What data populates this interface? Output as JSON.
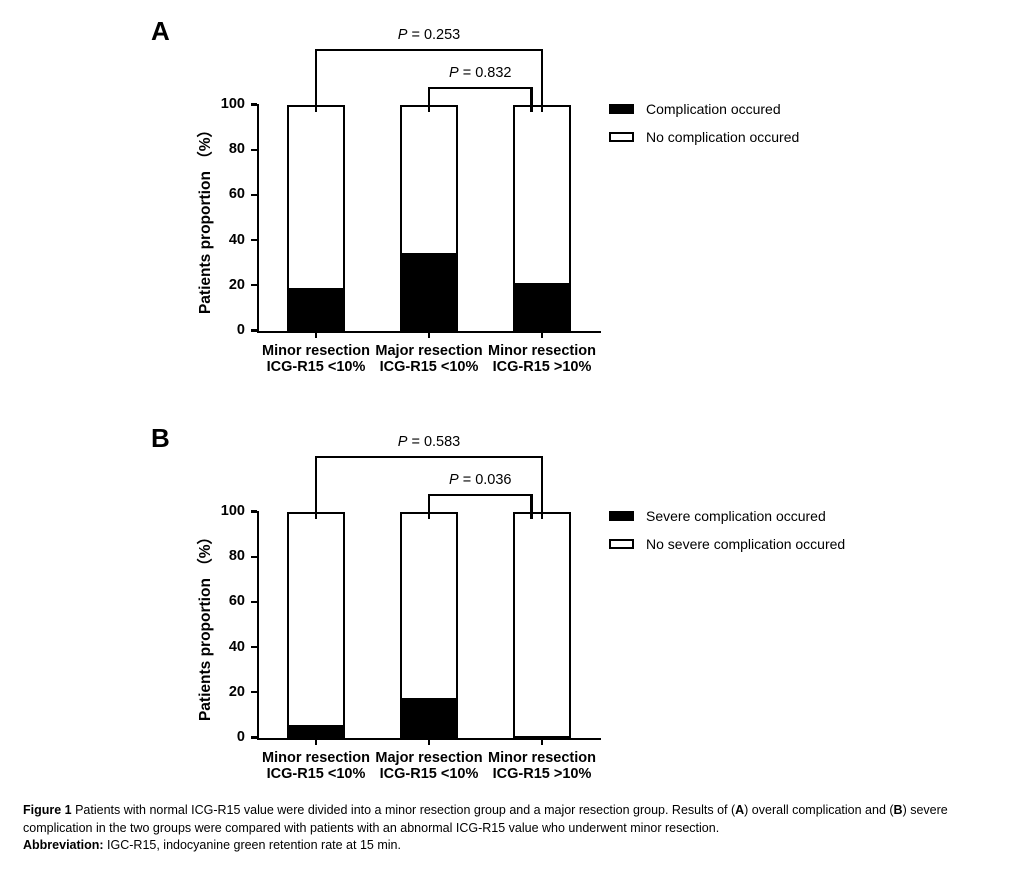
{
  "figure": {
    "background": "#ffffff",
    "ink_color": "#000000"
  },
  "chart_data": [
    {
      "panel_label": "A",
      "type": "bar",
      "stacked": true,
      "grid": false,
      "legend_position": "right",
      "ylabel": "Patients proportion （%）",
      "ylim": [
        0,
        100
      ],
      "yticks": [
        0,
        20,
        40,
        60,
        80,
        100
      ],
      "categories": [
        [
          "Minor resection",
          "ICG-R15 <10%"
        ],
        [
          "Major resection",
          "ICG-R15 <10%"
        ],
        [
          "Minor resection",
          "ICG-R15 >10%"
        ]
      ],
      "series": [
        {
          "name": "Complication occured",
          "color": "#000000",
          "values": [
            19,
            34.5,
            21
          ]
        },
        {
          "name": "No complication occured",
          "color": "#ffffff",
          "values": [
            81,
            65.5,
            79
          ]
        }
      ],
      "legend": [
        {
          "label": "Complication occured",
          "fill": "#000000"
        },
        {
          "label": "No complication occured",
          "fill": "#ffffff"
        }
      ],
      "comparisons": [
        {
          "label": "P = 0.253",
          "from": 0,
          "to": 2,
          "level": "outer"
        },
        {
          "label": "P = 0.832",
          "from": 1,
          "to": 2,
          "level": "inner"
        }
      ]
    },
    {
      "panel_label": "B",
      "type": "bar",
      "stacked": true,
      "grid": false,
      "legend_position": "right",
      "ylabel": "Patients proportion （%）",
      "ylim": [
        0,
        100
      ],
      "yticks": [
        0,
        20,
        40,
        60,
        80,
        100
      ],
      "categories": [
        [
          "Minor resection",
          "ICG-R15 <10%"
        ],
        [
          "Major resection",
          "ICG-R15 <10%"
        ],
        [
          "Minor resection",
          "ICG-R15 >10%"
        ]
      ],
      "series": [
        {
          "name": "Severe complication occured",
          "color": "#000000",
          "values": [
            5.5,
            17.5,
            0
          ]
        },
        {
          "name": "No severe complication occured",
          "color": "#ffffff",
          "values": [
            94.5,
            82.5,
            100
          ]
        }
      ],
      "legend": [
        {
          "label": "Severe complication occured",
          "fill": "#000000"
        },
        {
          "label": "No severe complication occured",
          "fill": "#ffffff"
        }
      ],
      "comparisons": [
        {
          "label": "P = 0.583",
          "from": 0,
          "to": 2,
          "level": "outer"
        },
        {
          "label": "P = 0.036",
          "from": 1,
          "to": 2,
          "level": "inner"
        }
      ]
    }
  ],
  "caption": {
    "lines": [
      [
        {
          "text": "Figure 1",
          "bold": true
        },
        {
          "text": " Patients with normal ICG-R15 value were divided into a minor resection group and a major resection group. Results of (",
          "bold": false
        },
        {
          "text": "A",
          "bold": true
        },
        {
          "text": ") overall complication and (",
          "bold": false
        },
        {
          "text": "B",
          "bold": true
        },
        {
          "text": ") severe",
          "bold": false
        }
      ],
      [
        {
          "text": "complication in the two groups were compared with patients with an abnormal ICG-R15 value who underwent minor resection.",
          "bold": false
        }
      ],
      [
        {
          "text": "Abbreviation:",
          "bold": true
        },
        {
          "text": " IGC-R15, indocyanine green retention rate at 15 min.",
          "bold": false
        }
      ]
    ]
  }
}
